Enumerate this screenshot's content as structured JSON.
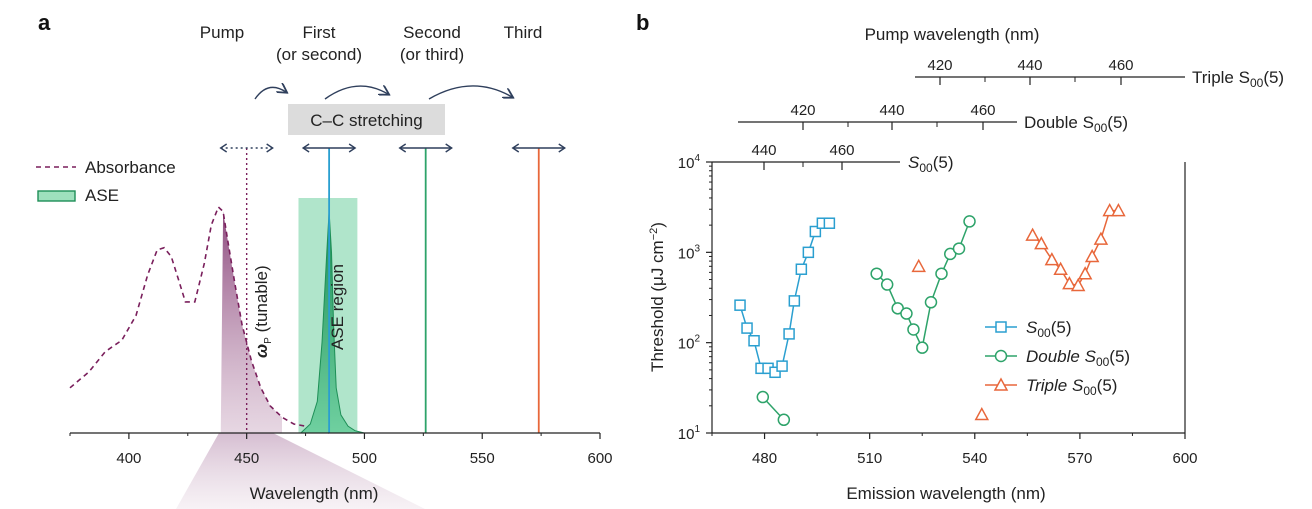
{
  "colors": {
    "s00": "#2a9fd0",
    "double": "#2ea36a",
    "triple": "#e8673b",
    "absorbance": "#7a1f5c",
    "ase_fill": "#6fd0a0",
    "arrow": "#2f3f5c",
    "pump_fill": "#9b5c8a"
  },
  "panel_a": {
    "letter": "a",
    "headers": {
      "pump": "Pump",
      "first_l1": "First",
      "first_l2": "(or second)",
      "second_l1": "Second",
      "second_l2": "(or third)",
      "third": "Third"
    },
    "cc_label": "C–C stretching",
    "legend": {
      "absorbance": "Absorbance",
      "ase": "ASE"
    },
    "omega_label": "ω",
    "omega_sub": "P",
    "omega_suffix": " (tunable)",
    "ase_region_label": "ASE region",
    "xlabel": "Wavelength (nm)",
    "xticks": [
      "400",
      "450",
      "500",
      "550",
      "600"
    ]
  },
  "panel_b": {
    "letter": "b",
    "pump_axis_title": "Pump wavelength (nm)",
    "triple_axis": {
      "label": "Triple S",
      "sub": "00",
      "suffix": "(5)",
      "ticks": [
        "420",
        "440",
        "460"
      ]
    },
    "double_axis": {
      "label": "Double S",
      "sub": "00",
      "suffix": "(5)",
      "ticks": [
        "420",
        "440",
        "460"
      ]
    },
    "single_axis": {
      "label": "S",
      "sub": "00",
      "suffix": "(5)",
      "ticks": [
        "440",
        "460"
      ]
    },
    "ylabel_main": "Threshold (μJ cm",
    "ylabel_sup": "−2",
    "ylabel_end": ")",
    "xlabel": "Emission wavelength (nm)",
    "xticks": [
      "480",
      "510",
      "540",
      "570",
      "600"
    ],
    "legend": [
      {
        "label": "S",
        "sub": "00",
        "suffix": "(5)"
      },
      {
        "label": "Double S",
        "sub": "00",
        "suffix": "(5)"
      },
      {
        "label": "Triple S",
        "sub": "00",
        "suffix": "(5)"
      }
    ]
  },
  "chart_data": [
    {
      "type": "line",
      "title": "a",
      "xlabel": "Wavelength (nm)",
      "ylabel": "",
      "xlim": [
        375,
        600
      ],
      "series": [
        {
          "name": "Absorbance",
          "style": "dashed",
          "x": [
            375,
            383,
            390,
            397,
            403,
            408,
            412,
            415,
            418,
            421,
            424,
            428,
            432,
            435,
            438,
            440,
            442,
            445,
            448,
            452,
            456,
            460,
            465,
            470,
            475,
            480,
            485
          ],
          "y": [
            0.2,
            0.27,
            0.36,
            0.41,
            0.52,
            0.7,
            0.81,
            0.82,
            0.78,
            0.68,
            0.58,
            0.58,
            0.75,
            0.92,
            1.0,
            0.98,
            0.85,
            0.66,
            0.48,
            0.32,
            0.2,
            0.12,
            0.07,
            0.04,
            0.03,
            0.02,
            0.0
          ]
        },
        {
          "name": "ASE",
          "style": "filled",
          "x": [
            473,
            477,
            480,
            482,
            484,
            485,
            486,
            487,
            488,
            490,
            493,
            496,
            500
          ],
          "y": [
            0.0,
            0.04,
            0.14,
            0.4,
            0.8,
            0.98,
            0.8,
            0.45,
            0.2,
            0.08,
            0.03,
            0.01,
            0.0
          ]
        }
      ],
      "markers": {
        "pump_nm": 450,
        "first_nm": 485,
        "second_nm": 526,
        "third_nm": 574,
        "ase_region_nm": [
          472,
          497
        ]
      }
    },
    {
      "type": "scatter",
      "title": "b",
      "xlabel": "Emission wavelength (nm)",
      "ylabel": "Threshold (μJ cm−2)",
      "xlim": [
        465,
        600
      ],
      "ylim": [
        10,
        10000
      ],
      "yscale": "log",
      "series": [
        {
          "name": "S00(5)",
          "marker": "square",
          "x": [
            473,
            475,
            477,
            479,
            481,
            483,
            485,
            487,
            488.5,
            490.5,
            492.5,
            494.5,
            496.5,
            498.5
          ],
          "y": [
            260,
            145,
            105,
            52,
            52,
            47,
            55,
            125,
            290,
            650,
            1000,
            1700,
            2100,
            2100
          ],
          "connected": true
        },
        {
          "name": "Double S00(5)",
          "marker": "circle",
          "x": [
            512,
            515,
            518,
            520.5,
            522.5,
            525,
            527.5,
            530.5,
            533,
            535.5,
            538.5
          ],
          "y": [
            580,
            440,
            240,
            210,
            140,
            88,
            280,
            580,
            960,
            1100,
            2200
          ],
          "connected": true
        },
        {
          "name": "Double S00(5) (unconnected)",
          "marker": "circle",
          "x": [
            479.5,
            485.5
          ],
          "y": [
            25,
            14
          ],
          "connected": true
        },
        {
          "name": "Triple S00(5)",
          "marker": "triangle",
          "x": [
            556.5,
            559,
            562,
            564.5,
            567,
            569.5,
            571.5,
            573.5,
            576,
            578.5,
            581
          ],
          "y": [
            1550,
            1250,
            830,
            650,
            450,
            430,
            580,
            900,
            1400,
            2900,
            2900
          ],
          "connected": true
        },
        {
          "name": "Triple S00(5) (outliers)",
          "marker": "triangle",
          "x": [
            524,
            542
          ],
          "y": [
            700,
            16
          ],
          "connected": false
        }
      ],
      "pump_axes": {
        "triple": {
          "ticks": [
            420,
            440,
            460
          ]
        },
        "double": {
          "ticks": [
            420,
            440,
            460
          ]
        },
        "single": {
          "ticks": [
            440,
            460
          ]
        }
      }
    }
  ]
}
